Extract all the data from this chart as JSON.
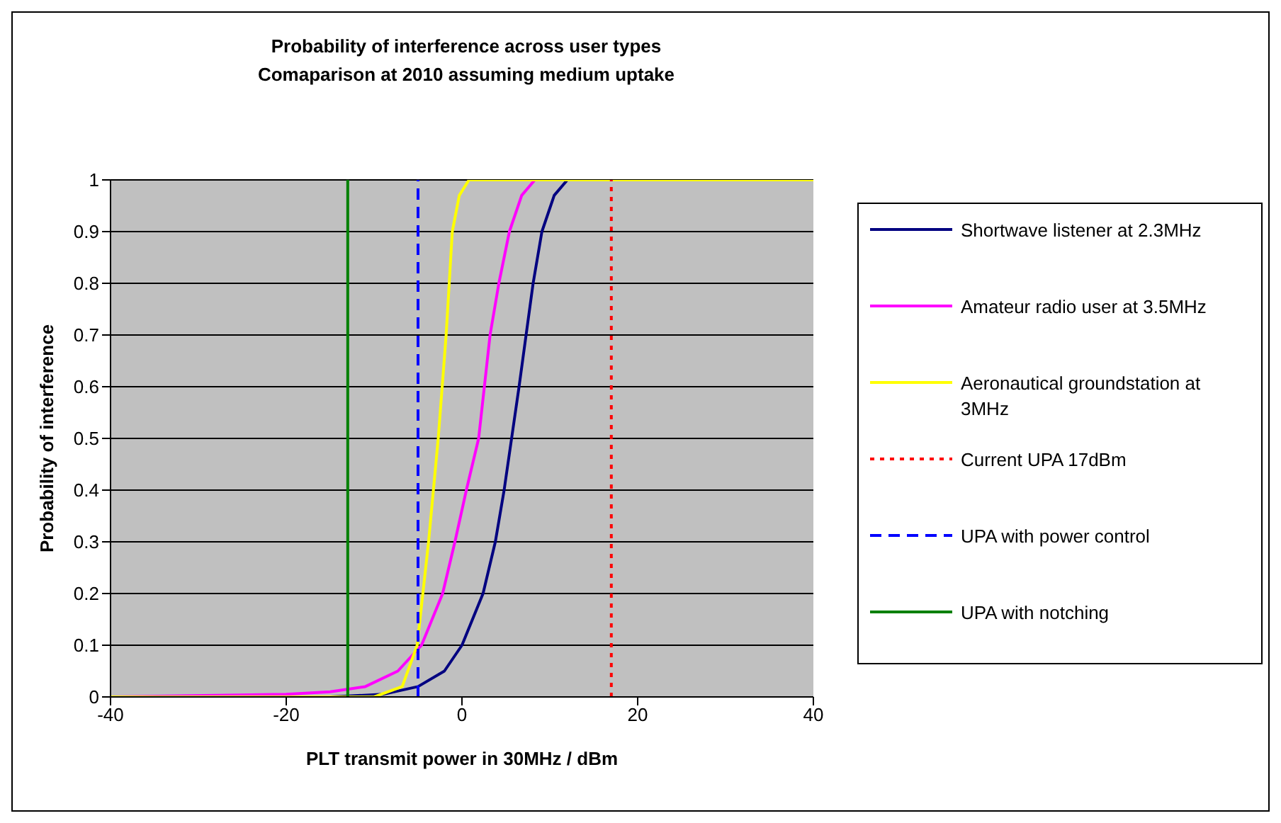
{
  "chart_data": {
    "type": "line",
    "title": "Probability of interference across user types",
    "subtitle": "Comaparison at 2010 assuming medium uptake",
    "xlabel": "PLT transmit power in 30MHz / dBm",
    "ylabel": "Probability of interference",
    "xlim": [
      -40,
      40
    ],
    "xticks": [
      -40,
      -20,
      0,
      20,
      40
    ],
    "ylim": [
      0,
      1
    ],
    "yticks": [
      0,
      0.1,
      0.2,
      0.3,
      0.4,
      0.5,
      0.6,
      0.7,
      0.8,
      0.9,
      1
    ],
    "grid": "y",
    "legend": "right",
    "marker": "none",
    "series": [
      {
        "name": "Shortwave listener at 2.3MHz",
        "color": "#000080",
        "line_style": "solid",
        "x": [
          -40,
          -15,
          -9,
          -5,
          -2,
          0,
          2.4,
          3.8,
          4.8,
          6.5,
          8.1,
          9.1,
          10.5,
          12
        ],
        "values": [
          0,
          0,
          0.005,
          0.02,
          0.05,
          0.1,
          0.2,
          0.3,
          0.4,
          0.6,
          0.8,
          0.9,
          0.97,
          1
        ]
      },
      {
        "name": "Amateur radio user at 3.5MHz",
        "color": "#ff00ff",
        "line_style": "solid",
        "x": [
          -40,
          -20,
          -15,
          -11,
          -7.3,
          -4.6,
          -2.2,
          -0.8,
          0.5,
          1.9,
          3.2,
          4.2,
          5.4,
          6.8,
          8.3
        ],
        "values": [
          0,
          0.005,
          0.01,
          0.02,
          0.05,
          0.1,
          0.2,
          0.3,
          0.4,
          0.5,
          0.7,
          0.8,
          0.9,
          0.97,
          1
        ]
      },
      {
        "name": "Aeronautical groundstation at 3MHz",
        "color": "#ffff00",
        "line_style": "solid",
        "x": [
          -40,
          -10,
          -6.8,
          -5.1,
          -3.8,
          -2.7,
          -1.8,
          -1.1,
          -0.3,
          0.8,
          40
        ],
        "values": [
          0,
          0,
          0.02,
          0.1,
          0.3,
          0.5,
          0.7,
          0.9,
          0.97,
          1,
          1
        ]
      },
      {
        "name": "Current UPA 17dBm",
        "color": "#ff0000",
        "line_style": "dotted",
        "x": [
          17,
          17
        ],
        "values": [
          0,
          1
        ]
      },
      {
        "name": "UPA with power control",
        "color": "#0000ff",
        "line_style": "dashed",
        "x": [
          -5,
          -5
        ],
        "values": [
          0,
          1
        ]
      },
      {
        "name": "UPA with notching",
        "color": "#008000",
        "line_style": "solid",
        "x": [
          -13,
          -13
        ],
        "values": [
          0,
          1
        ]
      }
    ]
  }
}
